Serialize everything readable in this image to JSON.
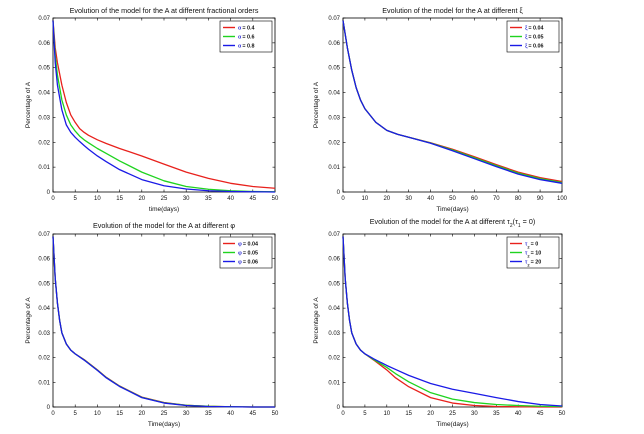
{
  "chart_data": [
    {
      "type": "line",
      "title": "Evolution of the model for the A at different fractional orders",
      "xlabel": "time(days)",
      "ylabel": "Percentage of A",
      "xlim": [
        0,
        50
      ],
      "ylim": [
        0,
        0.07
      ],
      "xticks": [
        0,
        5,
        10,
        15,
        20,
        25,
        30,
        35,
        40,
        45,
        50
      ],
      "yticks": [
        0,
        0.01,
        0.02,
        0.03,
        0.04,
        0.05,
        0.06,
        0.07
      ],
      "xtick_labels": [
        "0",
        "5",
        "10",
        "15",
        "20",
        "25",
        "30",
        "35",
        "40",
        "45",
        "50"
      ],
      "ytick_labels": [
        "0",
        "0.01",
        "0.02",
        "0.03",
        "0.04",
        "0.05",
        "0.06",
        "0.07"
      ],
      "legend_position": "top-right",
      "series": [
        {
          "name": "α = 0.4",
          "symbol": "α",
          "value_text": "= 0.4",
          "color": "#e8211c",
          "x": [
            0,
            0.5,
            1,
            2,
            3,
            4,
            5,
            6,
            7,
            8,
            10,
            12,
            15,
            20,
            25,
            30,
            35,
            40,
            45,
            50
          ],
          "y": [
            0.069,
            0.058,
            0.052,
            0.043,
            0.036,
            0.031,
            0.028,
            0.0255,
            0.024,
            0.0228,
            0.021,
            0.0195,
            0.0175,
            0.0145,
            0.0112,
            0.008,
            0.0055,
            0.0035,
            0.0022,
            0.0015
          ]
        },
        {
          "name": "α = 0.6",
          "symbol": "α",
          "value_text": "= 0.6",
          "color": "#1fd31f",
          "x": [
            0,
            0.5,
            1,
            2,
            3,
            4,
            5,
            6,
            7,
            8,
            10,
            12,
            15,
            20,
            25,
            30,
            35,
            40,
            45,
            50
          ],
          "y": [
            0.069,
            0.055,
            0.047,
            0.037,
            0.031,
            0.027,
            0.0245,
            0.0225,
            0.021,
            0.0198,
            0.0175,
            0.0155,
            0.0125,
            0.008,
            0.0045,
            0.0022,
            0.0011,
            0.0005,
            0.0002,
            0.0001
          ]
        },
        {
          "name": "α = 0.8",
          "symbol": "α",
          "value_text": "= 0.8",
          "color": "#1a1ae6",
          "x": [
            0,
            0.5,
            1,
            2,
            3,
            4,
            5,
            6,
            7,
            8,
            10,
            12,
            15,
            20,
            25,
            30,
            35,
            40,
            45,
            50
          ],
          "y": [
            0.069,
            0.052,
            0.043,
            0.033,
            0.027,
            0.024,
            0.022,
            0.0203,
            0.0187,
            0.0172,
            0.0145,
            0.0122,
            0.009,
            0.005,
            0.0025,
            0.0012,
            0.0005,
            0.0002,
            0.0001,
            0
          ]
        }
      ]
    },
    {
      "type": "line",
      "title": "Evolution of the model for the A at different ξ",
      "xlabel": "Time(days)",
      "ylabel": "Percentage of A",
      "xlim": [
        0,
        100
      ],
      "ylim": [
        0,
        0.07
      ],
      "xticks": [
        0,
        10,
        20,
        30,
        40,
        50,
        60,
        70,
        80,
        90,
        100
      ],
      "yticks": [
        0,
        0.01,
        0.02,
        0.03,
        0.04,
        0.05,
        0.06,
        0.07
      ],
      "xtick_labels": [
        "0",
        "10",
        "20",
        "30",
        "40",
        "50",
        "60",
        "70",
        "80",
        "90",
        "100"
      ],
      "ytick_labels": [
        "0",
        "0.01",
        "0.02",
        "0.03",
        "0.04",
        "0.05",
        "0.06",
        "0.07"
      ],
      "legend_position": "top-right",
      "series": [
        {
          "name": "ξ = 0.04",
          "symbol": "ξ",
          "value_text": "= 0.04",
          "color": "#e8211c",
          "x": [
            0,
            2,
            4,
            6,
            8,
            10,
            15,
            20,
            25,
            30,
            40,
            50,
            60,
            70,
            80,
            90,
            100
          ],
          "y": [
            0.069,
            0.058,
            0.049,
            0.042,
            0.037,
            0.0335,
            0.028,
            0.0248,
            0.0232,
            0.022,
            0.0198,
            0.0172,
            0.0142,
            0.011,
            0.008,
            0.0058,
            0.0042
          ]
        },
        {
          "name": "ξ = 0.05",
          "symbol": "ξ",
          "value_text": "= 0.05",
          "color": "#1fd31f",
          "x": [
            0,
            2,
            4,
            6,
            8,
            10,
            15,
            20,
            25,
            30,
            40,
            50,
            60,
            70,
            80,
            90,
            100
          ],
          "y": [
            0.069,
            0.058,
            0.049,
            0.042,
            0.037,
            0.0335,
            0.028,
            0.0248,
            0.0232,
            0.022,
            0.0197,
            0.0169,
            0.0138,
            0.0106,
            0.0076,
            0.0054,
            0.0038
          ]
        },
        {
          "name": "ξ = 0.06",
          "symbol": "ξ",
          "value_text": "= 0.06",
          "color": "#1a1ae6",
          "x": [
            0,
            2,
            4,
            6,
            8,
            10,
            15,
            20,
            25,
            30,
            40,
            50,
            60,
            70,
            80,
            90,
            100
          ],
          "y": [
            0.069,
            0.058,
            0.049,
            0.042,
            0.037,
            0.0335,
            0.028,
            0.0248,
            0.0232,
            0.022,
            0.0196,
            0.0166,
            0.0134,
            0.0102,
            0.0072,
            0.005,
            0.0035
          ]
        }
      ]
    },
    {
      "type": "line",
      "title": "Evolution of the model for the A at different φ",
      "xlabel": "Time(days)",
      "ylabel": "Percentage of A",
      "xlim": [
        0,
        50
      ],
      "ylim": [
        0,
        0.07
      ],
      "xticks": [
        0,
        5,
        10,
        15,
        20,
        25,
        30,
        35,
        40,
        45,
        50
      ],
      "yticks": [
        0,
        0.01,
        0.02,
        0.03,
        0.04,
        0.05,
        0.06,
        0.07
      ],
      "xtick_labels": [
        "0",
        "5",
        "10",
        "15",
        "20",
        "25",
        "30",
        "35",
        "40",
        "45",
        "50"
      ],
      "ytick_labels": [
        "0",
        "0.01",
        "0.02",
        "0.03",
        "0.04",
        "0.05",
        "0.06",
        "0.07"
      ],
      "legend_position": "top-right",
      "series": [
        {
          "name": "φ = 0.04",
          "symbol": "φ",
          "value_text": "= 0.04",
          "color": "#e8211c",
          "x": [
            0,
            0.5,
            1,
            1.5,
            2,
            3,
            4,
            5,
            7,
            10,
            12,
            15,
            20,
            25,
            30,
            35,
            40,
            45,
            50
          ],
          "y": [
            0.069,
            0.052,
            0.042,
            0.035,
            0.03,
            0.0255,
            0.023,
            0.0215,
            0.0192,
            0.015,
            0.012,
            0.0085,
            0.004,
            0.0018,
            0.0007,
            0.0003,
            0.0001,
            0,
            0
          ]
        },
        {
          "name": "φ = 0.05",
          "symbol": "φ",
          "value_text": "= 0.05",
          "color": "#1fd31f",
          "x": [
            0,
            0.5,
            1,
            1.5,
            2,
            3,
            4,
            5,
            7,
            10,
            12,
            15,
            20,
            25,
            30,
            35,
            40,
            45,
            50
          ],
          "y": [
            0.069,
            0.052,
            0.042,
            0.035,
            0.03,
            0.0255,
            0.023,
            0.0215,
            0.0191,
            0.0149,
            0.0119,
            0.0084,
            0.0039,
            0.0017,
            0.0007,
            0.0003,
            0.0001,
            0,
            0
          ]
        },
        {
          "name": "φ = 0.06",
          "symbol": "φ",
          "value_text": "= 0.06",
          "color": "#1a1ae6",
          "x": [
            0,
            0.5,
            1,
            1.5,
            2,
            3,
            4,
            5,
            7,
            10,
            12,
            15,
            20,
            25,
            30,
            35,
            40,
            45,
            50
          ],
          "y": [
            0.069,
            0.052,
            0.042,
            0.035,
            0.03,
            0.0255,
            0.023,
            0.0215,
            0.019,
            0.0148,
            0.0118,
            0.0083,
            0.0038,
            0.0016,
            0.0006,
            0.0002,
            0.0001,
            0,
            0
          ]
        }
      ]
    },
    {
      "type": "line",
      "title": "Evolution of the model for the A at different τ2(τ1 = 0)",
      "title_text": "Evolution of the model for the A at different ",
      "title_math": [
        "τ",
        "2",
        "(τ",
        "1",
        " = 0)"
      ],
      "xlabel": "Time(days)",
      "ylabel": "Percentage of A",
      "xlim": [
        0,
        50
      ],
      "ylim": [
        0,
        0.07
      ],
      "xticks": [
        0,
        5,
        10,
        15,
        20,
        25,
        30,
        35,
        40,
        45,
        50
      ],
      "yticks": [
        0,
        0.01,
        0.02,
        0.03,
        0.04,
        0.05,
        0.06,
        0.07
      ],
      "xtick_labels": [
        "0",
        "5",
        "10",
        "15",
        "20",
        "25",
        "30",
        "35",
        "40",
        "45",
        "50"
      ],
      "ytick_labels": [
        "0",
        "0.01",
        "0.02",
        "0.03",
        "0.04",
        "0.05",
        "0.06",
        "0.07"
      ],
      "legend_position": "top-right",
      "series": [
        {
          "name": "τ2 = 0",
          "symbol": "τ",
          "sub": "2",
          "value_text": "= 0",
          "color": "#e8211c",
          "x": [
            0,
            0.5,
            1,
            1.5,
            2,
            3,
            4,
            5,
            7,
            10,
            12,
            15,
            20,
            25,
            30,
            35,
            40,
            45,
            50
          ],
          "y": [
            0.069,
            0.052,
            0.042,
            0.035,
            0.03,
            0.0255,
            0.023,
            0.0215,
            0.019,
            0.015,
            0.0118,
            0.0082,
            0.0038,
            0.0016,
            0.0006,
            0.0002,
            0.0001,
            0,
            0
          ]
        },
        {
          "name": "τ2 = 10",
          "symbol": "τ",
          "sub": "2",
          "value_text": "= 10",
          "color": "#1fd31f",
          "x": [
            0,
            0.5,
            1,
            1.5,
            2,
            3,
            4,
            5,
            7,
            10,
            12,
            15,
            20,
            25,
            30,
            35,
            40,
            45,
            50
          ],
          "y": [
            0.069,
            0.052,
            0.042,
            0.035,
            0.03,
            0.0255,
            0.023,
            0.0215,
            0.0192,
            0.016,
            0.0135,
            0.0102,
            0.0058,
            0.0032,
            0.0018,
            0.001,
            0.0006,
            0.0003,
            0.0002
          ]
        },
        {
          "name": "τ2 = 20",
          "symbol": "τ",
          "sub": "2",
          "value_text": "= 20",
          "color": "#1a1ae6",
          "x": [
            0,
            0.5,
            1,
            1.5,
            2,
            3,
            4,
            5,
            7,
            10,
            12,
            15,
            20,
            25,
            30,
            35,
            40,
            45,
            50
          ],
          "y": [
            0.069,
            0.052,
            0.042,
            0.035,
            0.03,
            0.0255,
            0.023,
            0.0215,
            0.0195,
            0.0168,
            0.0152,
            0.0128,
            0.0095,
            0.0072,
            0.0055,
            0.0038,
            0.0022,
            0.001,
            0.0004
          ]
        }
      ]
    }
  ]
}
